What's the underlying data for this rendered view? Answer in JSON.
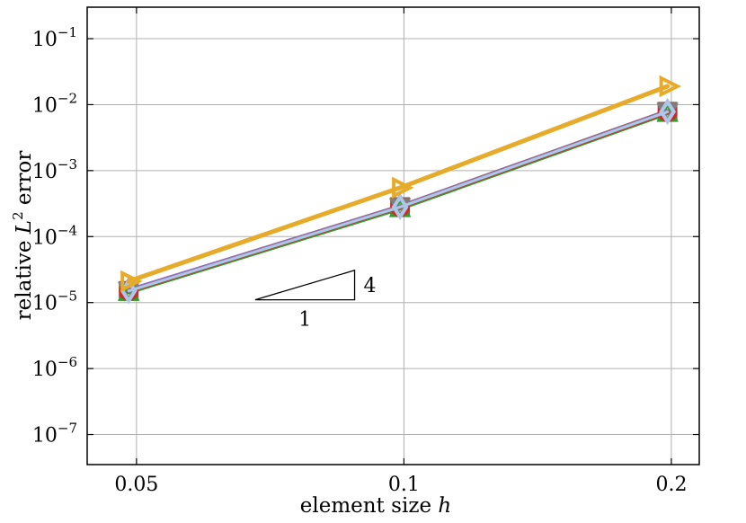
{
  "chart_data": {
    "type": "line",
    "xlabel_text": "element size",
    "xlabel_var": "h",
    "ylabel_text": "relative",
    "ylabel_var": "L",
    "ylabel_sup": "2",
    "ylabel_tail": "error",
    "xscale": "log",
    "yscale": "log",
    "xlim": [
      0.044,
      0.215
    ],
    "ylim": [
      3.5e-08,
      0.3
    ],
    "xticks": [
      {
        "value": 0.05,
        "label": "0.05"
      },
      {
        "value": 0.1,
        "label": "0.1"
      },
      {
        "value": 0.2,
        "label": "0.2"
      }
    ],
    "yticks": [
      {
        "value": 1e-07,
        "exp": "−7"
      },
      {
        "value": 1e-06,
        "exp": "−6"
      },
      {
        "value": 1e-05,
        "exp": "−5"
      },
      {
        "value": 0.0001,
        "exp": "−4"
      },
      {
        "value": 0.001,
        "exp": "−3"
      },
      {
        "value": 0.01,
        "exp": "−2"
      },
      {
        "value": 0.1,
        "exp": "−1"
      }
    ],
    "ytick_base": "10",
    "grid": true,
    "series": [
      {
        "color": "#8c564b",
        "marker": "square",
        "x": [
          0.049,
          0.099,
          0.198
        ],
        "y": [
          1.5e-05,
          0.00028,
          0.0078
        ]
      },
      {
        "color": "#2ca02c",
        "marker": "triangle-up",
        "x": [
          0.049,
          0.099,
          0.198
        ],
        "y": [
          1.45e-05,
          0.00027,
          0.0075
        ]
      },
      {
        "color": "#d62728",
        "marker": "circle",
        "x": [
          0.049,
          0.099,
          0.198
        ],
        "y": [
          1.5e-05,
          0.00028,
          0.0077
        ]
      },
      {
        "color": "#9467bd",
        "marker": "diamond",
        "x": [
          0.049,
          0.099,
          0.198
        ],
        "y": [
          1.55e-05,
          0.000285,
          0.0079
        ]
      },
      {
        "color": "#7f7f7f",
        "marker": "triangle-down",
        "x": [
          0.049,
          0.099,
          0.198
        ],
        "y": [
          1.5e-05,
          0.00028,
          0.0078
        ]
      },
      {
        "color": "#aec7e8",
        "marker": "diamond",
        "x": [
          0.049,
          0.099,
          0.198
        ],
        "y": [
          1.5e-05,
          0.00028,
          0.0078
        ]
      },
      {
        "color": "#e6ab2a",
        "marker": "triangle-right",
        "x": [
          0.049,
          0.099,
          0.198
        ],
        "y": [
          2.1e-05,
          0.00055,
          0.019
        ]
      }
    ],
    "slope_triangle": {
      "x0": 0.068,
      "x1": 0.088,
      "y0": 1.1e-05,
      "slope": 4,
      "run_label": "1",
      "rise_label": "4"
    }
  }
}
